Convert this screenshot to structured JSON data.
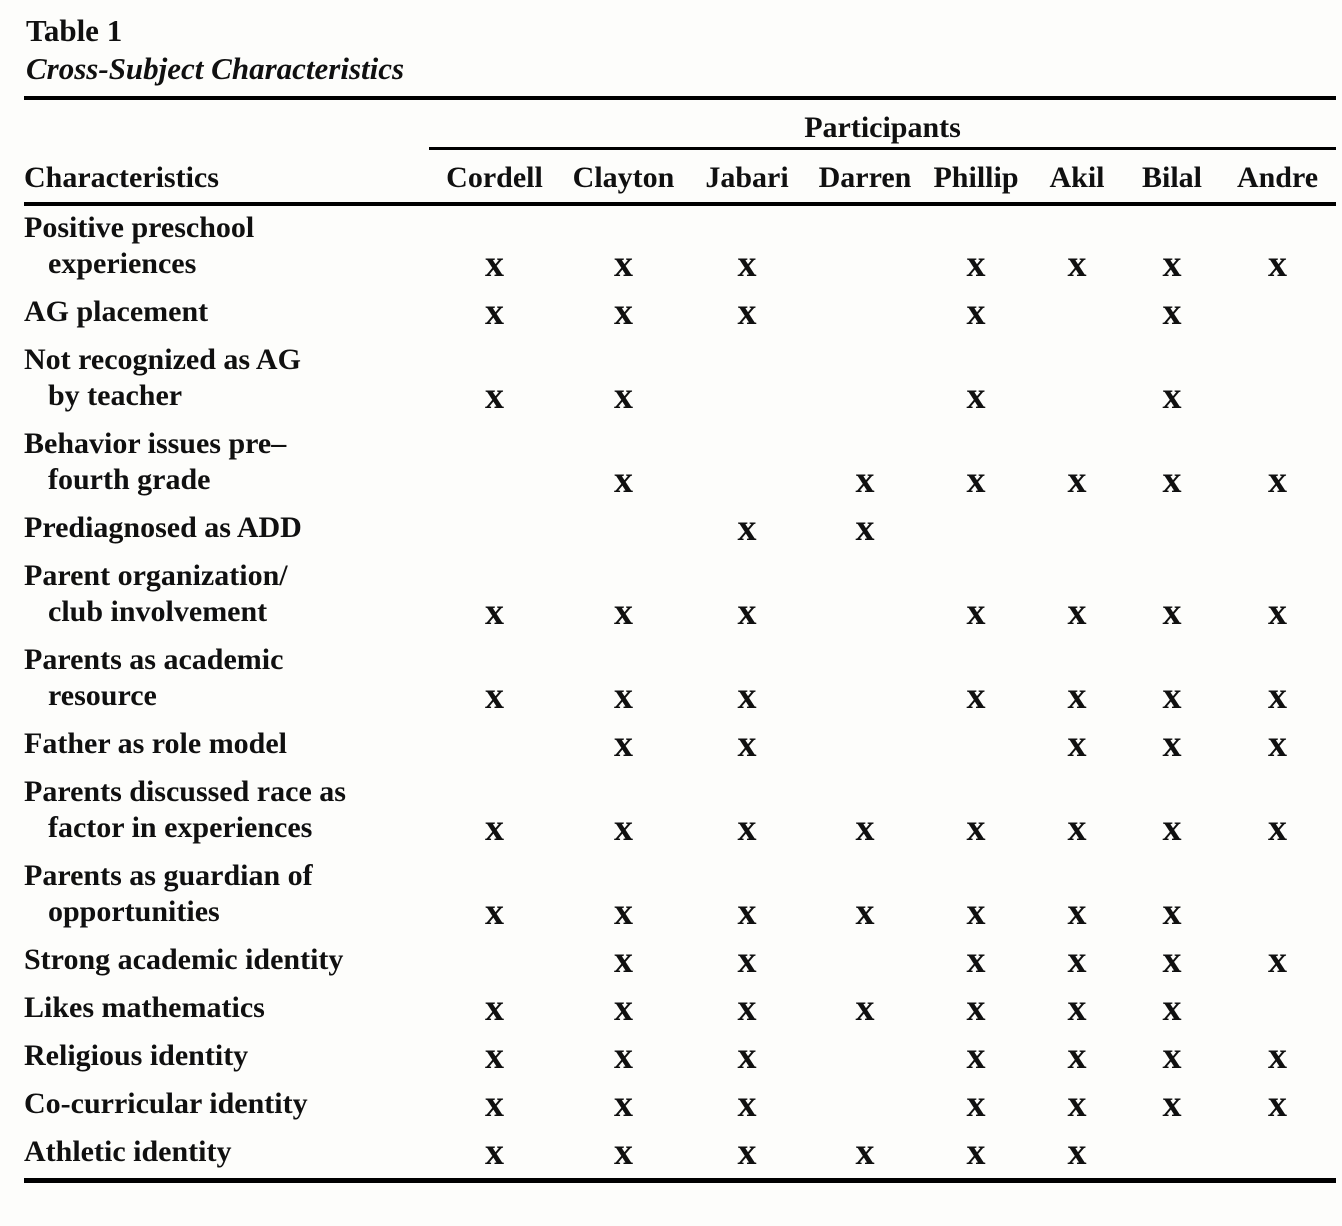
{
  "caption": {
    "label": "Table 1",
    "title": "Cross-Subject Characteristics"
  },
  "table": {
    "group_header": "Participants",
    "row_header": "Characteristics",
    "participants": [
      "Cordell",
      "Clayton",
      "Jabari",
      "Darren",
      "Phillip",
      "Akil",
      "Bilal",
      "Andre"
    ],
    "mark_glyph": "x",
    "rows": [
      {
        "label_lines": [
          "Positive preschool",
          "experiences"
        ],
        "marks": [
          1,
          1,
          1,
          0,
          1,
          1,
          1,
          1
        ]
      },
      {
        "label_lines": [
          "AG placement"
        ],
        "marks": [
          1,
          1,
          1,
          0,
          1,
          0,
          1,
          0
        ]
      },
      {
        "label_lines": [
          "Not recognized as AG",
          "by teacher"
        ],
        "marks": [
          1,
          1,
          0,
          0,
          1,
          0,
          1,
          0
        ]
      },
      {
        "label_lines": [
          "Behavior issues pre–",
          "fourth grade"
        ],
        "marks": [
          0,
          1,
          0,
          1,
          1,
          1,
          1,
          1
        ]
      },
      {
        "label_lines": [
          "Prediagnosed as ADD"
        ],
        "marks": [
          0,
          0,
          1,
          1,
          0,
          0,
          0,
          0
        ]
      },
      {
        "label_lines": [
          "Parent organization/",
          "club involvement"
        ],
        "marks": [
          1,
          1,
          1,
          0,
          1,
          1,
          1,
          1
        ]
      },
      {
        "label_lines": [
          "Parents as academic",
          "resource"
        ],
        "marks": [
          1,
          1,
          1,
          0,
          1,
          1,
          1,
          1
        ]
      },
      {
        "label_lines": [
          "Father as role model"
        ],
        "marks": [
          0,
          1,
          1,
          0,
          0,
          1,
          1,
          1
        ]
      },
      {
        "label_lines": [
          "Parents discussed race as",
          "factor in experiences"
        ],
        "marks": [
          1,
          1,
          1,
          1,
          1,
          1,
          1,
          1
        ]
      },
      {
        "label_lines": [
          "Parents as guardian of",
          "opportunities"
        ],
        "marks": [
          1,
          1,
          1,
          1,
          1,
          1,
          1,
          0
        ]
      },
      {
        "label_lines": [
          "Strong academic identity"
        ],
        "marks": [
          0,
          1,
          1,
          0,
          1,
          1,
          1,
          1
        ]
      },
      {
        "label_lines": [
          "Likes mathematics"
        ],
        "marks": [
          1,
          1,
          1,
          1,
          1,
          1,
          1,
          0
        ]
      },
      {
        "label_lines": [
          "Religious identity"
        ],
        "marks": [
          1,
          1,
          1,
          0,
          1,
          1,
          1,
          1
        ]
      },
      {
        "label_lines": [
          "Co-curricular identity"
        ],
        "marks": [
          1,
          1,
          1,
          0,
          1,
          1,
          1,
          1
        ]
      },
      {
        "label_lines": [
          "Athletic identity"
        ],
        "marks": [
          1,
          1,
          1,
          1,
          1,
          1,
          0,
          0
        ]
      }
    ]
  },
  "colors": {
    "ink": "#101010",
    "paper": "#fdfdfb"
  }
}
